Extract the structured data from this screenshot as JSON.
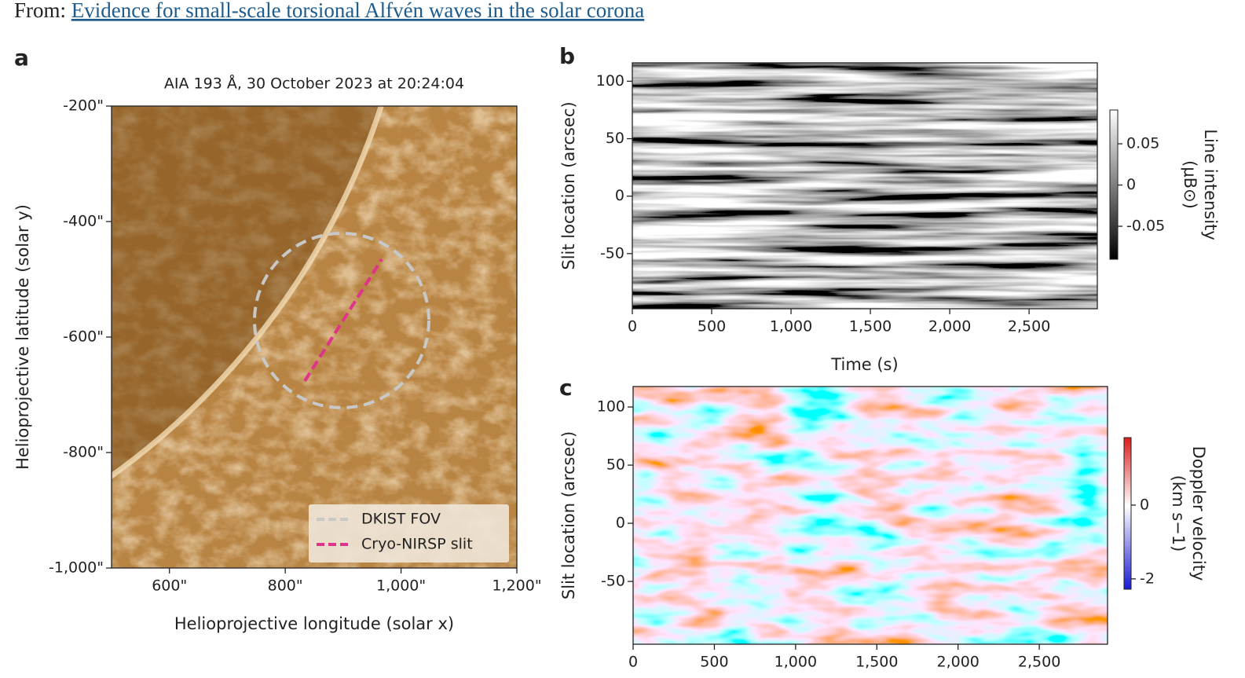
{
  "header": {
    "prefix": "From:",
    "link": "Evidence for small-scale torsional Alfvén waves in the solar corona"
  },
  "panels": [
    {
      "label": "a",
      "title": "AIA 193 Å, 30 October 2023 at 20:24:04",
      "xlabel": "Helioprojective longitude (solar x)",
      "ylabel": "Helioprojective latitude (solar y)",
      "xlim": [
        500,
        1200
      ],
      "ylim": [
        -1000,
        -200
      ],
      "xticks": [
        {
          "value": 600,
          "label": "600\""
        },
        {
          "value": 800,
          "label": "800\""
        },
        {
          "value": 1000,
          "label": "1,000\""
        },
        {
          "value": 1200,
          "label": "1,200\""
        }
      ],
      "yticks": [
        {
          "value": -200,
          "label": "-200\""
        },
        {
          "value": -400,
          "label": "-400\""
        },
        {
          "value": -600,
          "label": "-600\""
        },
        {
          "value": -800,
          "label": "-800\""
        },
        {
          "value": -1000,
          "label": "-1,000\""
        }
      ],
      "legend": [
        "DKIST FOV",
        "Cryo-NIRSP slit"
      ]
    },
    {
      "label": "b",
      "xlabel": "Time (s)",
      "ylabel": "Slit location (arcsec)",
      "xlim": [
        0,
        2930
      ],
      "ylim": [
        -98,
        116
      ],
      "xticks": [
        0,
        500,
        {
          "value": 1000,
          "label": "1,000"
        },
        {
          "value": 1500,
          "label": "1,500"
        },
        {
          "value": 2000,
          "label": "2,000"
        },
        {
          "value": 2500,
          "label": "2,500"
        }
      ],
      "yticks": [
        -50,
        0,
        50,
        100
      ],
      "colorbar": {
        "label": [
          "Line intensity",
          "(μB⊙)"
        ],
        "lim": [
          -0.09,
          0.091
        ],
        "ticks": [
          -0.05,
          0,
          0.05
        ]
      }
    },
    {
      "label": "c",
      "ylabel": "Slit location (arcsec)",
      "xlim": [
        0,
        2920
      ],
      "ylim": [
        -104,
        117.6
      ],
      "xticks": [
        0,
        500,
        {
          "value": 1000,
          "label": "1,000"
        },
        {
          "value": 1500,
          "label": "1,500"
        },
        {
          "value": 2000,
          "label": "2,000"
        },
        {
          "value": 2500,
          "label": "2,500"
        }
      ],
      "yticks": [
        -50,
        0,
        50,
        100
      ],
      "colorbar": {
        "label": [
          "Doppler velocity",
          "(km s−1)"
        ],
        "lim": [
          -2.28,
          1.83
        ],
        "ticks": [
          -2,
          0
        ]
      }
    }
  ]
}
